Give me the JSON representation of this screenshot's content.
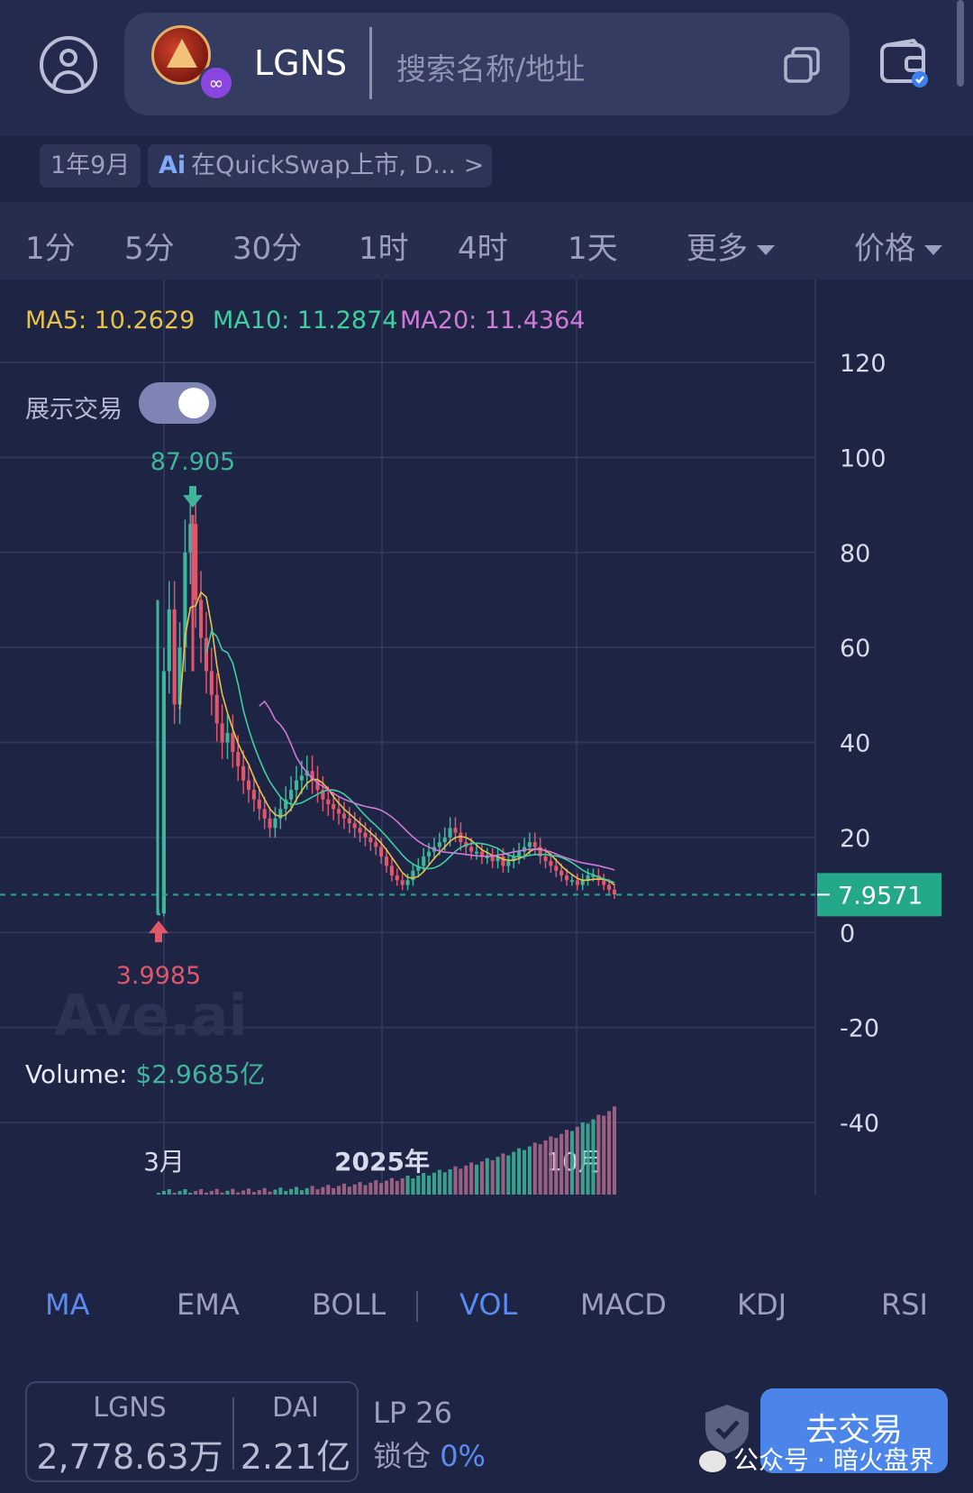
{
  "header": {
    "token_symbol": "LGNS",
    "chain_badge_icon": "polygon-icon",
    "search_placeholder": "搜索名称/地址"
  },
  "tags": {
    "age": "1年9月",
    "news_prefix": "Ai",
    "news_text": "在QuickSwap上市, D... >"
  },
  "timeframes": {
    "items": [
      "1分",
      "5分",
      "30分",
      "1时",
      "4时",
      "1天"
    ],
    "more": "更多",
    "price": "价格"
  },
  "ma_legend": {
    "ma5": "MA5: 10.2629",
    "ma10": "MA10: 11.2874",
    "ma20": "MA20: 11.4364",
    "colors": {
      "ma5": "#e6c24a",
      "ma10": "#3ecfa0",
      "ma20": "#d07ad8"
    }
  },
  "toggle": {
    "label": "展示交易",
    "on": true
  },
  "watermark": "Ave.ai",
  "volume": {
    "label": "Volume:",
    "value": "$2.9685亿"
  },
  "chart_data": {
    "type": "candlestick",
    "y_ticks": [
      "120",
      "100",
      "80",
      "60",
      "40",
      "20",
      "0",
      "-20",
      "-40"
    ],
    "x_ticks": [
      "3月",
      "2025年",
      "10月"
    ],
    "current_price": "7.9571",
    "high_marker": "87.905",
    "low_marker": "3.9985",
    "ylim": [
      -40,
      120
    ],
    "colors": {
      "up": "#3fb59a",
      "down": "#e0566a",
      "current": "#23a88a"
    },
    "closes": [
      4,
      55,
      68,
      48,
      60,
      80,
      86,
      70,
      62,
      55,
      50,
      44,
      40,
      42,
      38,
      35,
      32,
      30,
      28,
      26,
      24,
      22,
      24,
      26,
      28,
      30,
      32,
      33,
      34,
      32,
      30,
      28,
      27,
      26,
      25,
      24,
      23,
      22,
      21,
      20,
      19,
      18,
      16,
      14,
      12,
      11,
      10,
      11,
      13,
      14,
      16,
      17,
      18,
      19,
      20,
      22,
      21,
      19,
      18,
      17,
      17,
      16,
      16,
      15,
      16,
      14,
      15,
      16,
      17,
      18,
      19,
      18,
      16,
      15,
      14,
      13,
      12,
      11,
      11,
      10,
      11,
      12,
      12,
      11,
      10,
      9,
      8
    ]
  },
  "indicators": {
    "main": [
      "MA",
      "EMA",
      "BOLL"
    ],
    "sub": [
      "VOL",
      "MACD",
      "KDJ",
      "RSI"
    ],
    "active_main": "MA",
    "active_sub": "VOL"
  },
  "pool": {
    "token_a": "LGNS",
    "amount_a": "2,778.63万",
    "token_b": "DAI",
    "amount_b": "2.21亿",
    "lp": "LP 26",
    "lock_label": "锁仓",
    "lock_pct": "0%"
  },
  "trade_button": "去交易",
  "wechat_caption": "公众号 · 暗火盘界"
}
